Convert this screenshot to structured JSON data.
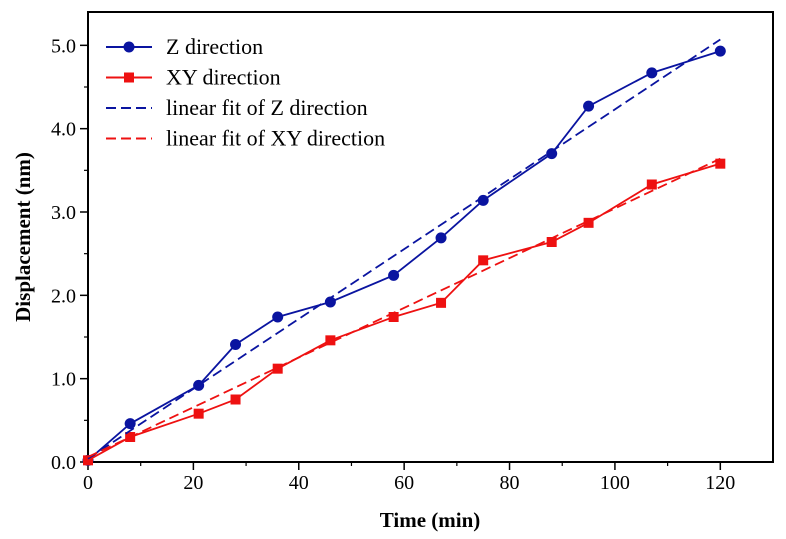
{
  "chart_data": {
    "type": "line",
    "xlabel": "Time (min)",
    "ylabel": "Displacement (nm)",
    "xlim": [
      0,
      130
    ],
    "ylim": [
      0,
      5.4
    ],
    "x_ticks": [
      0,
      20,
      40,
      60,
      80,
      100,
      120
    ],
    "x_tick_labels": [
      "0",
      "20",
      "40",
      "60",
      "80",
      "100",
      "120"
    ],
    "y_ticks": [
      0,
      1,
      2,
      3,
      4,
      5
    ],
    "y_tick_labels": [
      "0.0",
      "1.0",
      "2.0",
      "3.0",
      "4.0",
      "5.0"
    ],
    "legend_position": "top-left",
    "series": [
      {
        "name": "Z direction",
        "color": "#0a14a0",
        "marker": "circle",
        "style": "solid",
        "x": [
          0,
          8,
          21,
          28,
          36,
          46,
          58,
          67,
          75,
          88,
          95,
          107,
          120
        ],
        "y": [
          0.02,
          0.46,
          0.92,
          1.41,
          1.74,
          1.92,
          2.24,
          2.69,
          3.14,
          3.7,
          4.27,
          4.67,
          4.93
        ]
      },
      {
        "name": "XY direction",
        "color": "#ee1111",
        "marker": "square",
        "style": "solid",
        "x": [
          0,
          8,
          21,
          28,
          36,
          46,
          58,
          67,
          75,
          88,
          95,
          107,
          120
        ],
        "y": [
          0.02,
          0.3,
          0.58,
          0.75,
          1.12,
          1.46,
          1.74,
          1.91,
          2.42,
          2.64,
          2.87,
          3.33,
          3.58
        ]
      },
      {
        "name": "linear fit of Z direction",
        "color": "#0a14a0",
        "marker": "none",
        "style": "dashed",
        "x": [
          0,
          120
        ],
        "y": [
          0.04,
          5.07
        ]
      },
      {
        "name": "linear fit of XY direction",
        "color": "#ee1111",
        "marker": "none",
        "style": "dashed",
        "x": [
          0,
          120
        ],
        "y": [
          0.06,
          3.64
        ]
      }
    ]
  }
}
